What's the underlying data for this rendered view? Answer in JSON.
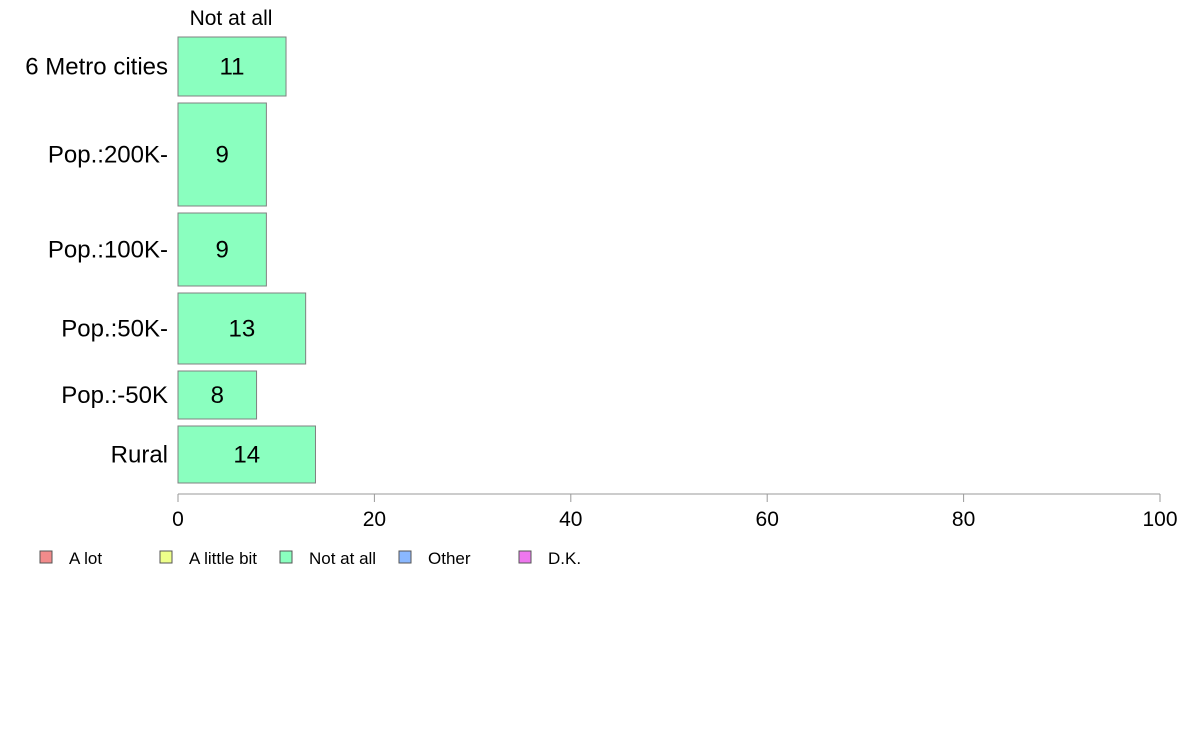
{
  "chart_data": {
    "type": "bar",
    "orientation": "horizontal",
    "stacked": true,
    "categories": [
      "6 Metro cities",
      "Pop.:200K-",
      "Pop.:100K-",
      "Pop.:50K-",
      "Pop.:-50K",
      "Rural"
    ],
    "series": [
      {
        "name": "Not at all",
        "values": [
          11,
          9,
          9,
          13,
          8,
          14
        ],
        "color": "#8affbf"
      }
    ],
    "top_label": "Not at all",
    "xlim": [
      0,
      100
    ],
    "xticks": [
      "0",
      "20",
      "40",
      "60",
      "80",
      "100"
    ],
    "grid": false,
    "legend_position": "bottom-left",
    "legend": [
      {
        "label": "A lot",
        "color": "#f28b8b"
      },
      {
        "label": "A little bit",
        "color": "#eeff8a"
      },
      {
        "label": "Not at all",
        "color": "#8affbf"
      },
      {
        "label": "Other",
        "color": "#8ab8ff"
      },
      {
        "label": "D.K.",
        "color": "#ee77ee"
      }
    ],
    "bar_border_color": "#808080",
    "axis_color": "#999999"
  }
}
